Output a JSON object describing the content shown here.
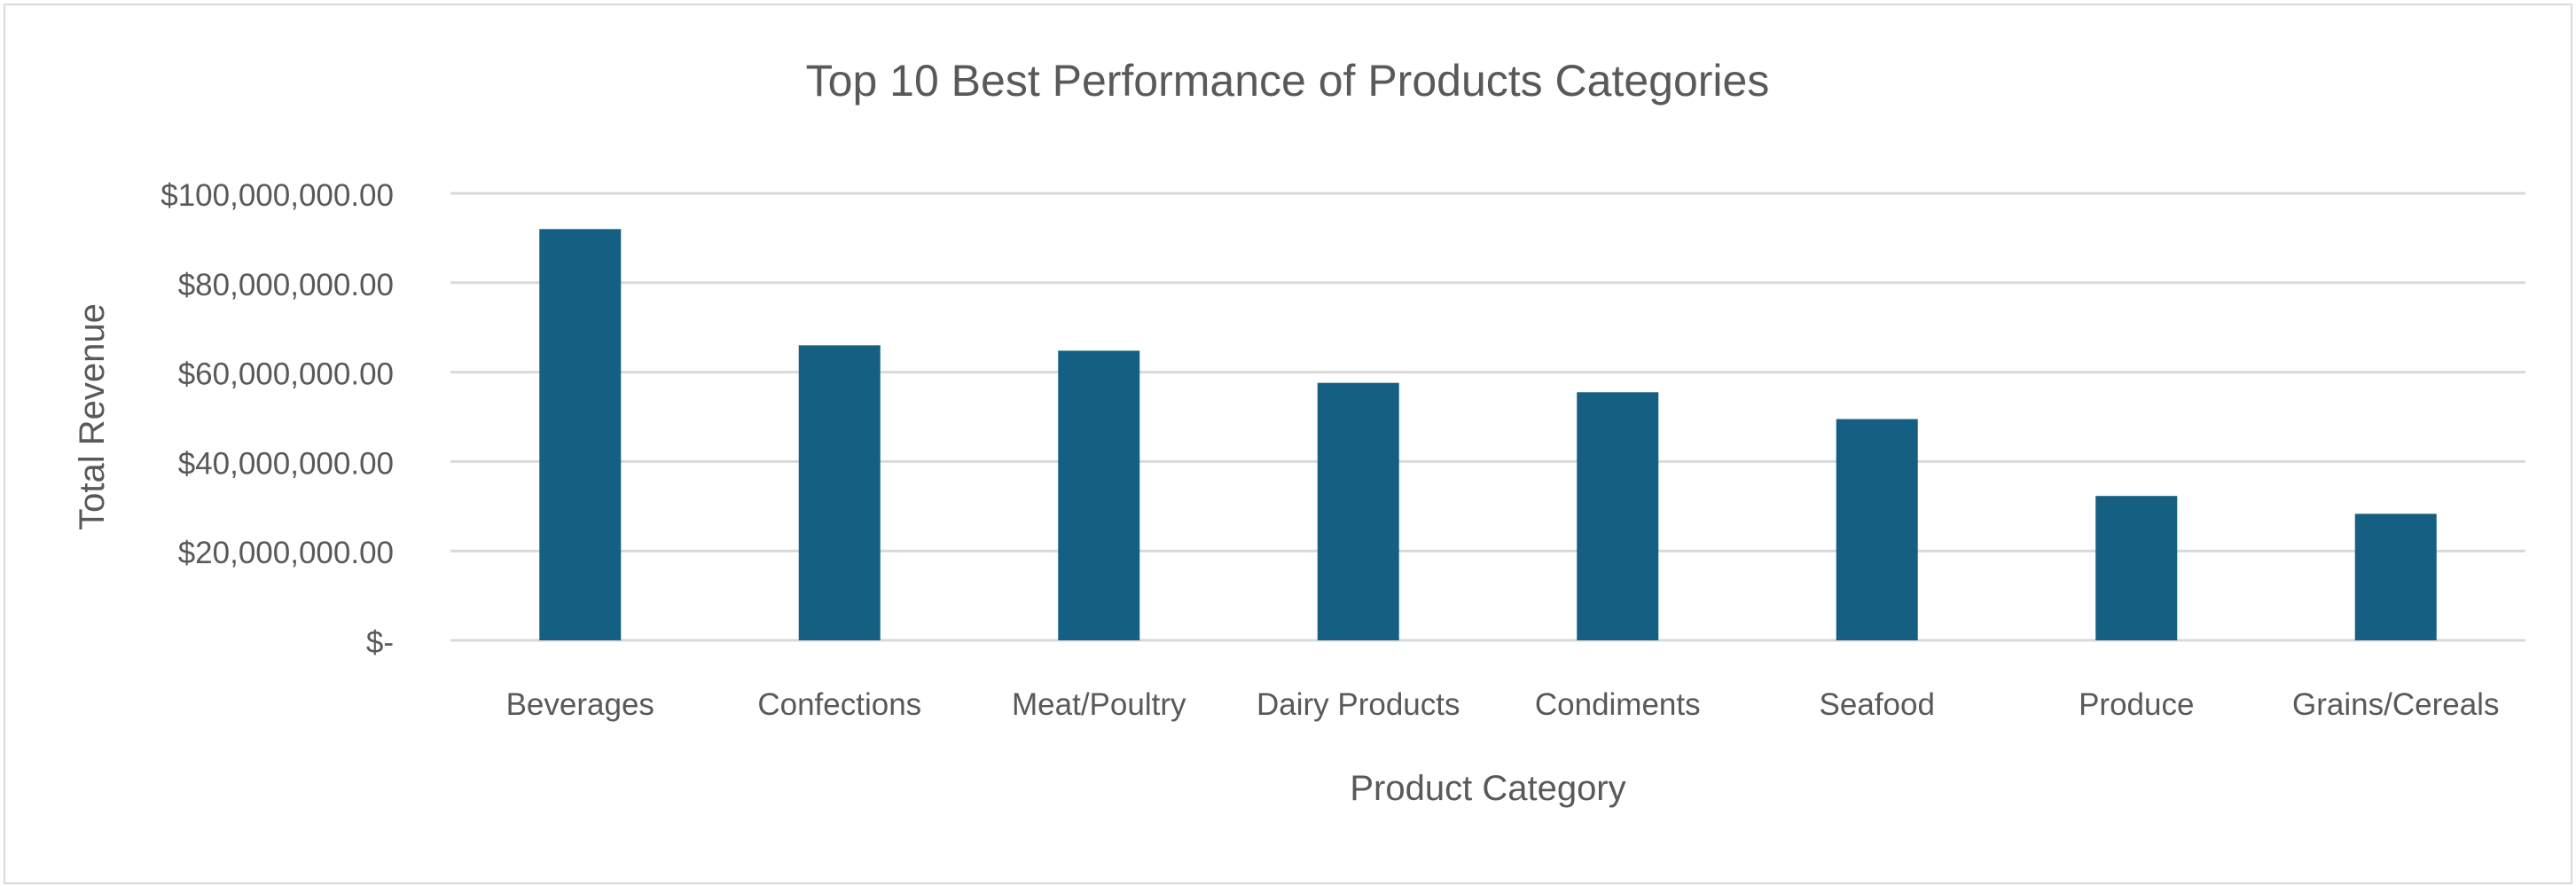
{
  "chart_data": {
    "type": "bar",
    "title": "Top 10 Best Performance of Products Categories",
    "xlabel": "Product Category",
    "ylabel": "Total Revenue",
    "categories": [
      "Beverages",
      "Confections",
      "Meat/Poultry",
      "Dairy Products",
      "Condiments",
      "Seafood",
      "Produce",
      "Grains/Cereals"
    ],
    "values": [
      92000000,
      66000000,
      64800000,
      57600000,
      55500000,
      49500000,
      32300000,
      28300000
    ],
    "ylim": [
      0,
      100000000
    ],
    "yticks": [
      {
        "value": 0,
        "label": "$-"
      },
      {
        "value": 20000000,
        "label": "$20,000,000.00"
      },
      {
        "value": 40000000,
        "label": "$40,000,000.00"
      },
      {
        "value": 60000000,
        "label": "$60,000,000.00"
      },
      {
        "value": 80000000,
        "label": "$80,000,000.00"
      },
      {
        "value": 100000000,
        "label": "$100,000,000.00"
      }
    ],
    "grid": true,
    "legend": "none",
    "bar_color": "#156082",
    "grid_color": "#d9d9d9",
    "text_color": "#595959"
  }
}
